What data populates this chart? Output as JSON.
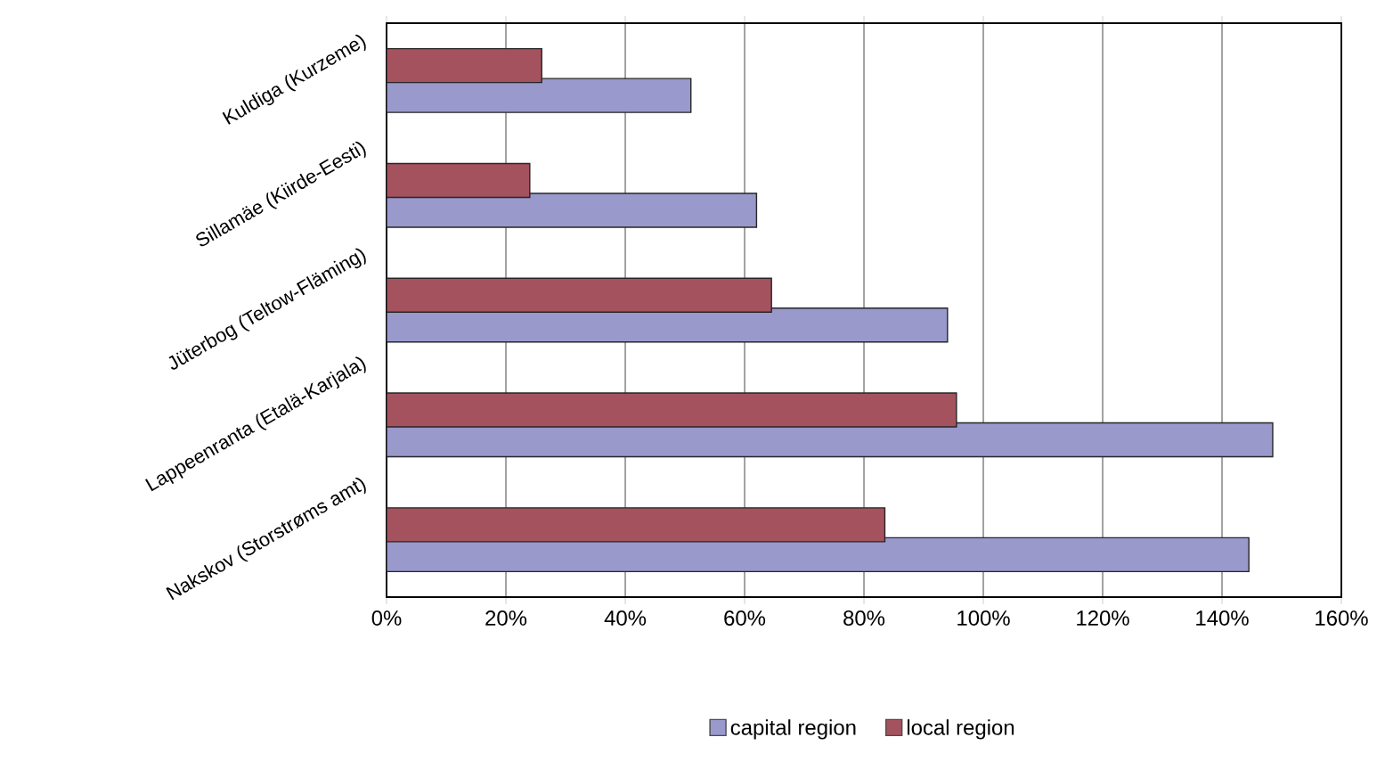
{
  "chart_data": {
    "type": "bar",
    "orientation": "horizontal",
    "categories": [
      "Kuldiga (Kurzeme)",
      "Sillamäe (Kiirde-Eesti)",
      "Jüterbog (Teltow-Fläming)",
      "Lappeenranta (Etalä-Karjala)",
      "Nakskov (Storstrøms amt)"
    ],
    "series": [
      {
        "name": "capital region",
        "color": "#9999cc",
        "values": [
          51,
          62,
          94,
          148.5,
          144.5
        ]
      },
      {
        "name": "local region",
        "color": "#a5525f",
        "values": [
          26,
          24,
          64.5,
          95.5,
          83.5
        ]
      }
    ],
    "xlim": [
      0,
      160
    ],
    "xticks": [
      {
        "value": 0,
        "label": "0%"
      },
      {
        "value": 20,
        "label": "20%"
      },
      {
        "value": 40,
        "label": "40%"
      },
      {
        "value": 60,
        "label": "60%"
      },
      {
        "value": 80,
        "label": "80%"
      },
      {
        "value": 100,
        "label": "100%"
      },
      {
        "value": 120,
        "label": "120%"
      },
      {
        "value": 140,
        "label": "140%"
      },
      {
        "value": 160,
        "label": "160%"
      }
    ],
    "grid": "x",
    "legend": "bottom"
  }
}
